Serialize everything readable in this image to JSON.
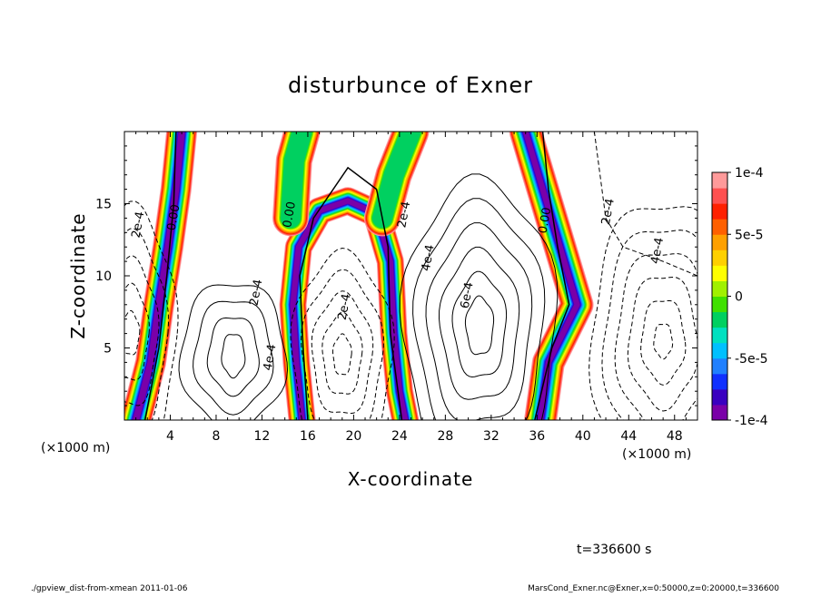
{
  "chart_data": {
    "type": "heatmap",
    "title": "disturbunce of Exner",
    "xlabel": "X-coordinate",
    "ylabel": "Z-coordinate",
    "x_unit": "(×1000 m)",
    "z_unit": "(×1000 m)",
    "xlim": [
      0,
      50
    ],
    "ylim": [
      0,
      20
    ],
    "x_ticks": [
      4,
      8,
      12,
      16,
      20,
      24,
      28,
      32,
      36,
      40,
      44,
      48
    ],
    "x_tick_labels": [
      "4",
      "8",
      "12",
      "16",
      "20",
      "24",
      "28",
      "32",
      "36",
      "40",
      "44",
      "48"
    ],
    "y_ticks": [
      5,
      10,
      15
    ],
    "y_tick_labels": [
      "5",
      "10",
      "15"
    ],
    "colorbar": {
      "range": [
        -0.0001,
        0.0001
      ],
      "tick_values": [
        0.0001,
        5e-05,
        0,
        -5e-05,
        -0.0001
      ],
      "tick_labels": [
        "1e-4",
        "5e-5",
        "0",
        "-5e-5",
        "-1e-4"
      ],
      "colors": [
        "#7a00a8",
        "#3a00c0",
        "#1030ff",
        "#2080ff",
        "#00c0ff",
        "#00e0c0",
        "#00d060",
        "#40e000",
        "#a0f000",
        "#ffff00",
        "#ffd000",
        "#ffa000",
        "#ff6000",
        "#ff2000",
        "#ff5050",
        "#ff9a9a"
      ]
    },
    "contour_labels": [
      {
        "text": "2e-4",
        "x": 1.5,
        "z": 13.5
      },
      {
        "text": "0.00",
        "x": 4.6,
        "z": 14.0
      },
      {
        "text": "2e-4",
        "x": 11.8,
        "z": 8.8
      },
      {
        "text": "4e-4",
        "x": 13.0,
        "z": 4.3
      },
      {
        "text": "0.00",
        "x": 14.7,
        "z": 14.2
      },
      {
        "text": "2e-4",
        "x": 19.5,
        "z": 7.8
      },
      {
        "text": "2e-4",
        "x": 24.7,
        "z": 14.2
      },
      {
        "text": "4e-4",
        "x": 26.8,
        "z": 11.2
      },
      {
        "text": "6e-4",
        "x": 30.2,
        "z": 8.6
      },
      {
        "text": "0.00",
        "x": 37.0,
        "z": 13.8
      },
      {
        "text": "2e-4",
        "x": 42.5,
        "z": 14.4
      },
      {
        "text": "4e-4",
        "x": 46.8,
        "z": 11.7
      }
    ]
  },
  "time_label": "t=336600 s",
  "footer_left": "./gpview_dist-from-xmean   2011-01-06",
  "footer_right": "MarsCond_Exner.nc@Exner,x=0:50000,z=0:20000,t=336600"
}
